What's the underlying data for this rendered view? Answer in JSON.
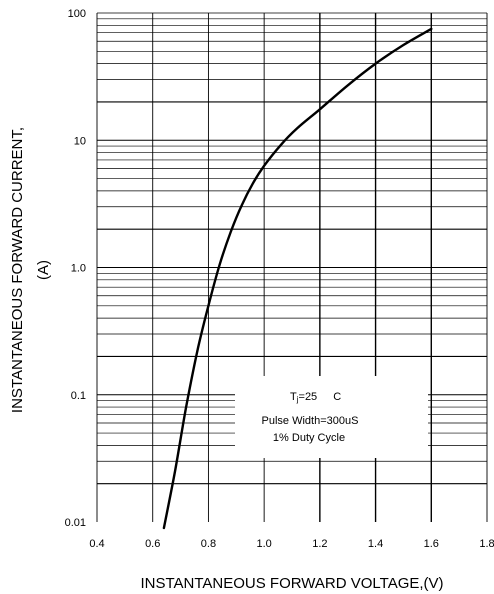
{
  "chart_data": {
    "type": "line",
    "title": "",
    "xlabel": "INSTANTANEOUS FORWARD VOLTAGE,(V)",
    "ylabel_line1": "INSTANTANEOUS FORWARD CURRENT,",
    "ylabel_line2": "(A)",
    "xlim": [
      0.4,
      1.8
    ],
    "ylim": [
      0.01,
      100
    ],
    "yscale": "log",
    "grid": true,
    "x_ticks": [
      "0.4",
      "0.6",
      "0.8",
      "1.0",
      "1.2",
      "1.4",
      "1.6",
      "1.8"
    ],
    "y_ticks": [
      {
        "value": 100,
        "label": "100"
      },
      {
        "value": 10,
        "label": "10"
      },
      {
        "value": 1,
        "label": "1.0"
      },
      {
        "value": 0.1,
        "label": "0.1"
      },
      {
        "value": 0.01,
        "label": "0.01"
      }
    ],
    "series": [
      {
        "x": [
          0.64,
          0.68,
          0.72,
          0.76,
          0.8,
          0.84,
          0.88,
          0.92,
          0.96,
          1.0,
          1.06,
          1.12,
          1.2,
          1.3,
          1.4,
          1.5,
          1.6
        ],
        "y": [
          0.008,
          0.025,
          0.08,
          0.22,
          0.5,
          1.05,
          1.9,
          3.1,
          4.6,
          6.3,
          9.2,
          12.5,
          17.5,
          27,
          40,
          56,
          75
        ]
      }
    ],
    "annotation": {
      "line1_prefix": "T",
      "line1_sub": "j",
      "line1_suffix": "=25",
      "line1_unit": "C",
      "line2": "Pulse Width=300uS",
      "line3": "1% Duty Cycle"
    }
  }
}
